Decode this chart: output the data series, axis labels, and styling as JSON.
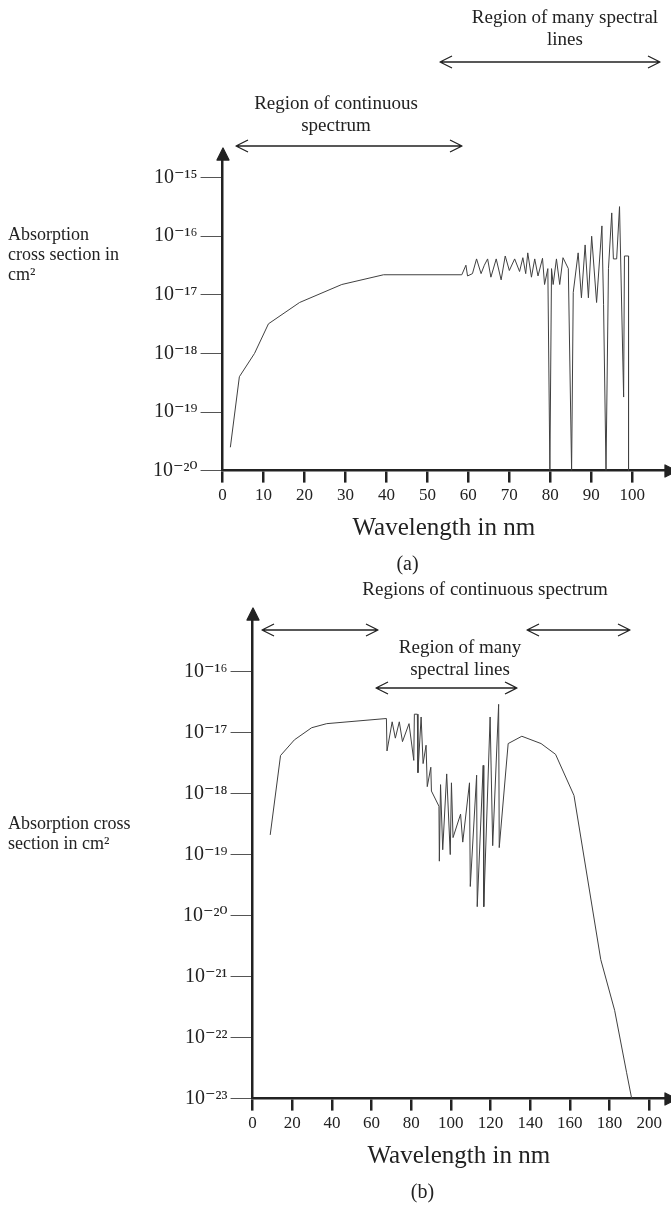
{
  "chart_data": [
    {
      "type": "line",
      "title": "(a)",
      "xlabel": "Wavelength in nm",
      "ylabel": "Absorption cross section in cm²",
      "log": true,
      "x": [
        1.9,
        4.1,
        7.8,
        11.2,
        18.8,
        29.1,
        39.3,
        58.4,
        59.4,
        59.8,
        61.0,
        62.0,
        63.1,
        63.9,
        64.7,
        65.5,
        66.8,
        68.0,
        69.0,
        70.0,
        71.3,
        72.5,
        73.3,
        74.0,
        74.5,
        75.4,
        76.2,
        77.0,
        78.1,
        78.6,
        79.4,
        79.9,
        80.3,
        80.7,
        81.5,
        82.3,
        83.1,
        84.4,
        85.2,
        85.6,
        86.8,
        87.6,
        88.5,
        89.3,
        90.1,
        91.3,
        92.6,
        93.0,
        93.6,
        94.2,
        95.0,
        95.4,
        96.2,
        96.9,
        97.9,
        98.1,
        99.1,
        99.1
      ],
      "series": [
        {
          "color": "#404040",
          "values": [
            2.5e-20,
            4e-19,
            1e-18,
            3.2e-18,
            7.4e-18,
            1.5e-17,
            2.2e-17,
            2.2e-17,
            3.2e-17,
            2.1e-17,
            2.3e-17,
            4.1e-17,
            2.3e-17,
            3.2e-17,
            4.1e-17,
            2e-17,
            4.1e-17,
            1.8e-17,
            4.6e-17,
            2.6e-17,
            4.1e-17,
            2.5e-17,
            4.3e-17,
            2.3e-17,
            5.2e-17,
            2e-17,
            4.1e-17,
            2.1e-17,
            4.2e-17,
            1.5e-17,
            2.8e-17,
            1e-20,
            2.8e-17,
            1.5e-17,
            4.1e-17,
            1.5e-17,
            4.3e-17,
            2.8e-17,
            1e-20,
            1.1e-17,
            5.2e-17,
            8.9e-18,
            7.1e-17,
            8.9e-18,
            1e-16,
            7.4e-18,
            1.5e-16,
            6.9e-18,
            1e-20,
            2.8e-17,
            2.5e-16,
            4.1e-17,
            4.1e-17,
            3.2e-16,
            1.8e-19,
            4.6e-17,
            4.6e-17,
            1e-20
          ]
        }
      ],
      "xlim": [
        0,
        108
      ],
      "xticks": [
        0,
        10,
        20,
        30,
        40,
        50,
        60,
        70,
        80,
        90,
        100
      ],
      "ylim": [
        1e-20,
        2e-15
      ],
      "yticks": [
        {
          "value": 1e-20,
          "label": "10⁻²⁰"
        },
        {
          "value": 1e-19,
          "label": "10⁻¹⁹"
        },
        {
          "value": 1e-18,
          "label": "10⁻¹⁸"
        },
        {
          "value": 1e-17,
          "label": "10⁻¹⁷"
        },
        {
          "value": 1e-16,
          "label": "10⁻¹⁶"
        },
        {
          "value": 1e-15,
          "label": "10⁻¹⁵"
        }
      ],
      "annotations": [
        "Region of many spectral lines",
        "Region of continuous spectrum"
      ]
    },
    {
      "type": "line",
      "title": "(b)",
      "xlabel": "Wavelength in nm",
      "ylabel": "Absorption cross section in cm²",
      "log": true,
      "x": [
        8.9,
        14.1,
        21.1,
        29.8,
        37.4,
        67.5,
        67.8,
        70.4,
        72.0,
        74.0,
        75.6,
        78.9,
        81.3,
        81.6,
        83.1,
        83.4,
        85.0,
        86.0,
        87.5,
        88.1,
        89.9,
        90.2,
        94.0,
        94.2,
        94.8,
        95.9,
        97.9,
        99.7,
        100.3,
        101.1,
        104.9,
        106.0,
        109.4,
        109.8,
        113.0,
        113.3,
        116.3,
        116.6,
        119.8,
        121.1,
        124.1,
        124.4,
        128.9,
        135.8,
        145.5,
        152.8,
        162.1,
        175.6,
        182.6,
        188.6,
        191.2
      ],
      "series": [
        {
          "color": "#404040",
          "values": [
            2.1e-19,
            4.2e-18,
            7.6e-18,
            1.2e-17,
            1.4e-17,
            1.7e-17,
            5e-18,
            1.5e-17,
            8.1e-18,
            1.5e-17,
            7.1e-18,
            1.4e-17,
            3.5e-18,
            2e-17,
            2e-17,
            2.2e-18,
            1.8e-17,
            3.1e-18,
            6.2e-18,
            1.3e-18,
            2.7e-18,
            1.1e-18,
            6.2e-19,
            7.8e-20,
            1.4e-18,
            1.2e-19,
            2.1e-18,
            1e-19,
            1.5e-18,
            1.9e-19,
            4.6e-19,
            1.6e-19,
            1.5e-18,
            3e-20,
            2e-18,
            1.4e-20,
            2.9e-18,
            1.4e-20,
            1.8e-17,
            1.4e-19,
            2.9e-17,
            1.3e-19,
            6.6e-18,
            8.7e-18,
            6.6e-18,
            4.4e-18,
            9.3e-19,
            1.9e-21,
            2.8e-22,
            2.7e-23,
            1e-23
          ]
        }
      ],
      "xlim": [
        0,
        208
      ],
      "xticks": [
        0,
        20,
        40,
        60,
        80,
        100,
        120,
        140,
        160,
        180,
        200
      ],
      "ylim": [
        1e-23,
        7e-16
      ],
      "yticks": [
        {
          "value": 1e-23,
          "label": "10⁻²³"
        },
        {
          "value": 1e-22,
          "label": "10⁻²²"
        },
        {
          "value": 1e-21,
          "label": "10⁻²¹"
        },
        {
          "value": 1e-20,
          "label": "10⁻²⁰"
        },
        {
          "value": 1e-19,
          "label": "10⁻¹⁹"
        },
        {
          "value": 1e-18,
          "label": "10⁻¹⁸"
        },
        {
          "value": 1e-17,
          "label": "10⁻¹⁷"
        },
        {
          "value": 1e-16,
          "label": "10⁻¹⁶"
        }
      ],
      "annotations": [
        "Regions of continuous spectrum",
        "Region of many spectral lines"
      ]
    }
  ]
}
